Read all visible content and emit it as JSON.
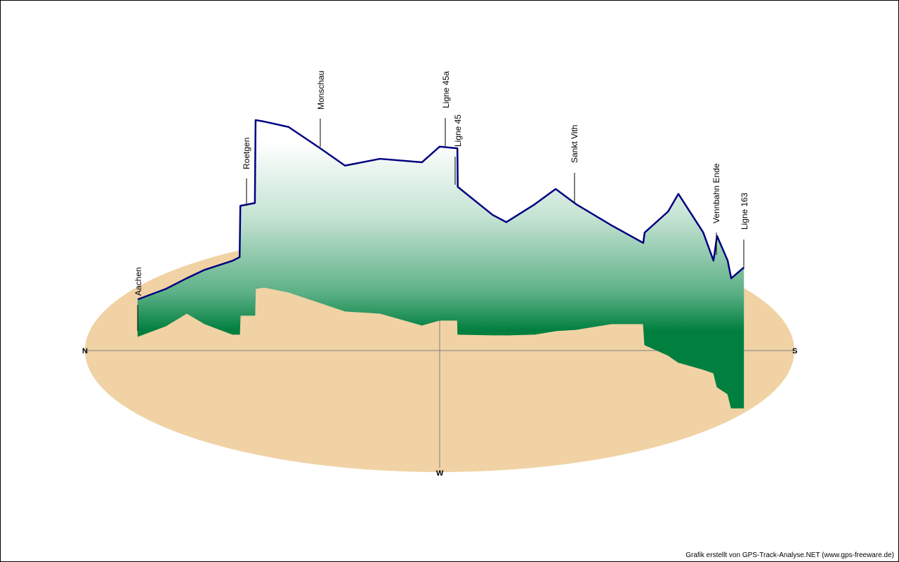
{
  "chart_data": {
    "type": "area",
    "title": "",
    "description_units": {
      "ns": "north-south position (-1 = N, 1 = S)",
      "ew": "east-west position (-1 = E, 1 = W)",
      "elev": "elevation (m, approx.)"
    },
    "directions": {
      "north": "N",
      "south": "S",
      "west": "W"
    },
    "colors": {
      "ground": "#f0d2a4",
      "track": "#000080",
      "fill_top": "#ffffff",
      "fill_bottom": "#007f3f",
      "axis": "#808080"
    },
    "track": [
      {
        "ns": -0.851,
        "ew": -0.116,
        "elev": 132
      },
      {
        "ns": -0.772,
        "ew": -0.202,
        "elev": 132
      },
      {
        "ns": -0.713,
        "ew": -0.306,
        "elev": 125
      },
      {
        "ns": -0.663,
        "ew": -0.22,
        "elev": 192
      },
      {
        "ns": -0.584,
        "ew": -0.133,
        "elev": 262
      },
      {
        "ns": -0.564,
        "ew": -0.133,
        "elev": 275
      },
      {
        "ns": -0.562,
        "ew": -0.289,
        "elev": 390
      },
      {
        "ns": -0.521,
        "ew": -0.289,
        "elev": 400
      },
      {
        "ns": -0.519,
        "ew": -0.509,
        "elev": 600
      },
      {
        "ns": -0.495,
        "ew": -0.52,
        "elev": 590
      },
      {
        "ns": -0.426,
        "ew": -0.48,
        "elev": 588
      },
      {
        "ns": -0.337,
        "ew": -0.393,
        "elev": 550
      },
      {
        "ns": -0.267,
        "ew": -0.324,
        "elev": 518
      },
      {
        "ns": -0.168,
        "ew": -0.306,
        "elev": 550
      },
      {
        "ns": -0.05,
        "ew": -0.208,
        "elev": 580
      },
      {
        "ns": 0.0,
        "ew": -0.249,
        "elev": 618
      },
      {
        "ns": 0.05,
        "ew": -0.249,
        "elev": 612
      },
      {
        "ns": 0.051,
        "ew": -0.133,
        "elev": 525
      },
      {
        "ns": 0.149,
        "ew": -0.127,
        "elev": 428
      },
      {
        "ns": 0.188,
        "ew": -0.127,
        "elev": 402
      },
      {
        "ns": 0.267,
        "ew": -0.133,
        "elev": 462
      },
      {
        "ns": 0.327,
        "ew": -0.162,
        "elev": 505
      },
      {
        "ns": 0.386,
        "ew": -0.173,
        "elev": 445
      },
      {
        "ns": 0.485,
        "ew": -0.22,
        "elev": 350
      },
      {
        "ns": 0.574,
        "ew": -0.22,
        "elev": 288
      },
      {
        "ns": 0.578,
        "ew": -0.046,
        "elev": 400
      },
      {
        "ns": 0.644,
        "ew": 0.04,
        "elev": 512
      },
      {
        "ns": 0.673,
        "ew": 0.098,
        "elev": 600
      },
      {
        "ns": 0.743,
        "ew": 0.156,
        "elev": 488
      },
      {
        "ns": 0.772,
        "ew": 0.185,
        "elev": 400
      },
      {
        "ns": 0.782,
        "ew": 0.301,
        "elev": 538
      },
      {
        "ns": 0.812,
        "ew": 0.358,
        "elev": 475
      },
      {
        "ns": 0.822,
        "ew": 0.474,
        "elev": 462
      },
      {
        "ns": 0.857,
        "ew": 0.474,
        "elev": 500
      }
    ],
    "waypoints": [
      "Aachen",
      "Roetgen",
      "Monschau",
      "Ligne 45a",
      "Ligne 45",
      "Sankt Vith",
      "Vennbahn Ende",
      "Ligne 163"
    ]
  },
  "footer": "Grafik erstellt von GPS-Track-Analyse.NET (www.gps-freeware.de)"
}
